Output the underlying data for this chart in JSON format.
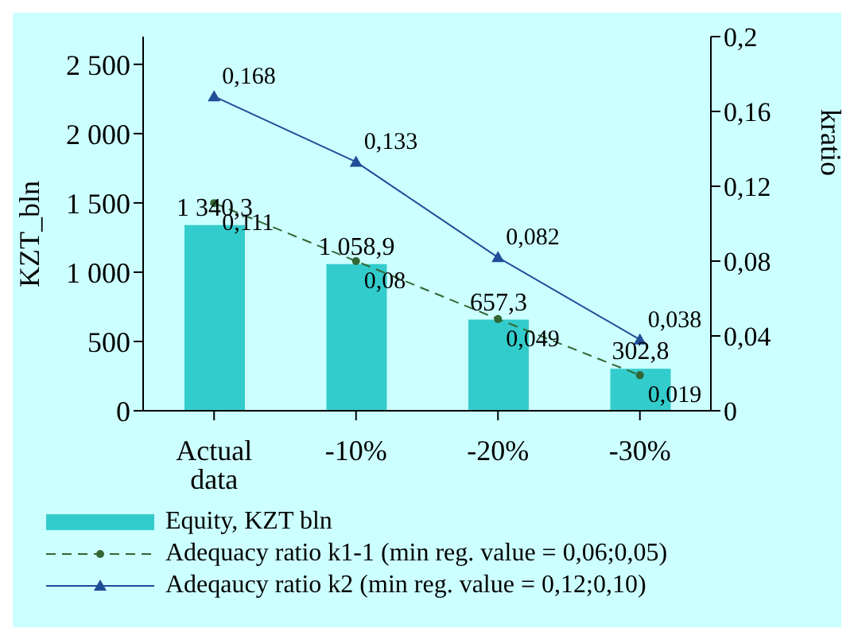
{
  "chart_data": {
    "type": "bar",
    "categories": [
      "Actual data",
      "-10%",
      "-20%",
      "-30%"
    ],
    "ylabel": "KZT_bln",
    "y2label": "kratio",
    "ylim": [
      0,
      2700
    ],
    "yticks": [
      {
        "value": 0,
        "label": "0"
      },
      {
        "value": 500,
        "label": "500"
      },
      {
        "value": 1000,
        "label": "1 000"
      },
      {
        "value": 1500,
        "label": "1 500"
      },
      {
        "value": 2000,
        "label": "2 000"
      },
      {
        "value": 2500,
        "label": "2 500"
      }
    ],
    "y2lim": [
      0,
      0.2
    ],
    "y2ticks": [
      {
        "value": 0,
        "label": "0"
      },
      {
        "value": 0.04,
        "label": "0,04"
      },
      {
        "value": 0.08,
        "label": "0,08"
      },
      {
        "value": 0.12,
        "label": "0,12"
      },
      {
        "value": 0.16,
        "label": "0,16"
      },
      {
        "value": 0.2,
        "label": "0,2"
      }
    ],
    "series": [
      {
        "name": "Equity, KZT bln",
        "color": "#33cccc",
        "values": [
          1340.3,
          1058.9,
          657.3,
          302.8
        ],
        "value_labels": [
          "1 340,3",
          "1 058,9",
          "657,3",
          "302,8"
        ]
      },
      {
        "name": "Adequacy ratio k1-1 (min reg. value = 0,06;0,05)",
        "type": "line",
        "axis": "y2",
        "color": "#336633",
        "marker": "circle",
        "line_style": "dashed",
        "values": [
          0.111,
          0.08,
          0.049,
          0.019
        ],
        "value_labels": [
          "0,111",
          "0,08",
          "0,049",
          "0,019"
        ]
      },
      {
        "name": "Adeqaucy ratio k2 (min reg. value = 0,12;0,10)",
        "type": "line",
        "axis": "y2",
        "color": "#1f4e99",
        "marker": "triangle",
        "line_style": "solid",
        "values": [
          0.168,
          0.133,
          0.082,
          0.038
        ],
        "value_labels": [
          "0,168",
          "0,133",
          "0,082",
          "0,038"
        ]
      }
    ],
    "legend": "bottom"
  }
}
